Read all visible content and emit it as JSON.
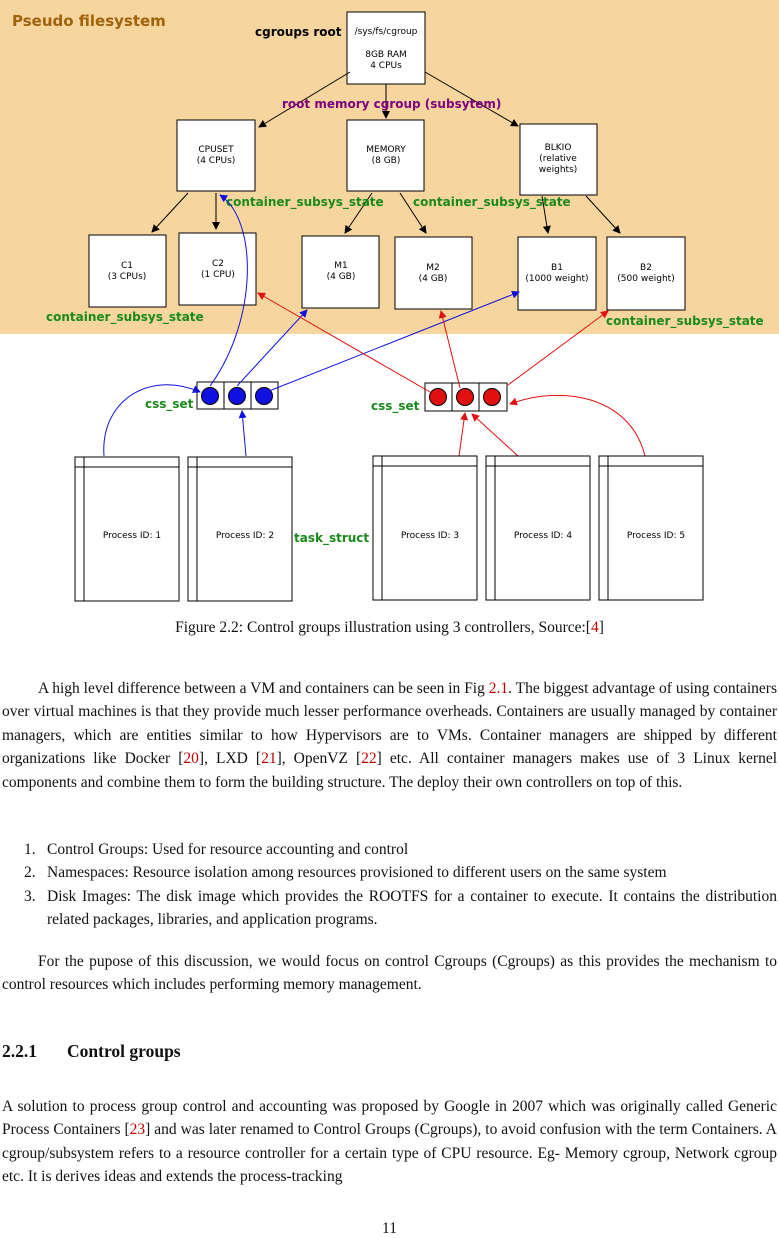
{
  "figure": {
    "region_label": "Pseudo filesystem",
    "root_label": "cgroups root",
    "root_box": [
      "/sys/fs/cgroup",
      "8GB RAM",
      "4 CPUs"
    ],
    "root_memory_label": "root memory cgroup (subsytem)",
    "subsystems": [
      {
        "lines": [
          "CPUSET",
          "(4 CPUs)"
        ]
      },
      {
        "lines": [
          "MEMORY",
          "(8 GB)"
        ]
      },
      {
        "lines": [
          "BLKIO",
          "(relative",
          "weights)"
        ]
      }
    ],
    "state_label": "container_subsys_state",
    "children": [
      {
        "lines": [
          "C1",
          "(3 CPUs)"
        ]
      },
      {
        "lines": [
          "C2",
          "(1 CPU)"
        ]
      },
      {
        "lines": [
          "M1",
          "(4 GB)"
        ]
      },
      {
        "lines": [
          "M2",
          "(4 GB)"
        ]
      },
      {
        "lines": [
          "B1",
          "(1000 weight)"
        ]
      },
      {
        "lines": [
          "B2",
          "(500 weight)"
        ]
      }
    ],
    "css_set_label": "css_set",
    "task_struct_label": "task_struct",
    "processes": [
      "Process ID: 1",
      "Process ID: 2",
      "Process ID: 3",
      "Process ID: 4",
      "Process ID: 5"
    ],
    "colors": {
      "region": "#f6d59e",
      "region_label": "#a0620a",
      "state": "#1a8a1a",
      "root_mem": "#800080",
      "blue": "#1010e0",
      "red": "#e01010"
    }
  },
  "caption": {
    "prefix": "Figure 2.2: Control groups illustration using 3 controllers, Source:[",
    "ref": "4",
    "suffix": "]"
  },
  "para1": {
    "t1": "A high level difference between a VM and containers can be seen in Fig ",
    "r1": "2.1",
    "t2": ". The biggest advantage of using containers over virtual machines is that they provide much lesser performance overheads. Containers are usually managed by container managers, which are entities similar to how Hypervisors are to VMs. Container managers are shipped by different organizations like Docker [",
    "r2": "20",
    "t3": "], LXD [",
    "r3": "21",
    "t4": "], OpenVZ [",
    "r4": "22",
    "t5": "] etc. All container managers makes use of 3 Linux kernel components and combine them to form the building structure. The deploy their own controllers on top of this."
  },
  "list": [
    {
      "num": "1.",
      "text": "Control Groups: Used for resource accounting and control"
    },
    {
      "num": "2.",
      "text": "Namespaces: Resource isolation among resources provisioned to different users on the same system"
    },
    {
      "num": "3.",
      "text": "Disk Images: The disk image which provides the ROOTFS for a container to execute. It contains the distribution related packages, libraries, and application programs."
    }
  ],
  "para2": "For the pupose of this discussion, we would focus on control Cgroups (Cgroups) as this provides the mechanism to control resources which includes performing memory management.",
  "section": {
    "num": "2.2.1",
    "title": "Control groups"
  },
  "para3": {
    "t1": "A solution to process group control and accounting was proposed by Google in 2007 which was originally called Generic Process Containers [",
    "r1": "23",
    "t2": "] and was later renamed to Control Groups (Cgroups), to avoid confusion with the term Containers. A cgroup/subsystem refers to a resource controller for a certain type of CPU resource. Eg- Memory cgroup, Network cgroup etc. It is derives ideas and extends the process-tracking"
  },
  "page_number": "11"
}
